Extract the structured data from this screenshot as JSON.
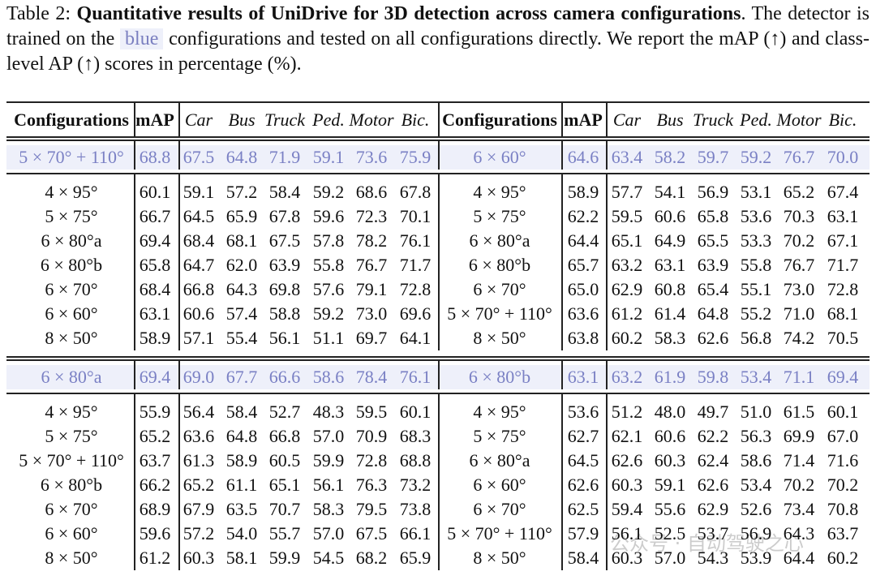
{
  "caption": {
    "label": "Table 2:",
    "bold": "Quantitative results of UniDrive for 3D detection across camera configurations",
    "text1": ". The detector is trained on the",
    "highlight": "blue",
    "text2": "configurations and tested on all configurations directly. We report the mAP (↑) and class-level AP (↑) scores in percentage (%)."
  },
  "table": {
    "header": [
      "Configurations",
      "mAP",
      "Car",
      "Bus",
      "Truck",
      "Ped.",
      "Motor",
      "Bic.",
      "Configurations",
      "mAP",
      "Car",
      "Bus",
      "Truck",
      "Ped.",
      "Motor",
      "Bic."
    ],
    "blocks": [
      {
        "train": [
          "5 × 70° + 110°",
          "68.8",
          "67.5",
          "64.8",
          "71.9",
          "59.1",
          "73.6",
          "75.9",
          "6 × 60°",
          "64.6",
          "63.4",
          "58.2",
          "59.7",
          "59.2",
          "76.7",
          "70.0"
        ],
        "rows": [
          [
            "4 × 95°",
            "60.1",
            "59.1",
            "57.2",
            "58.4",
            "59.2",
            "68.6",
            "67.8",
            "4 × 95°",
            "58.9",
            "57.7",
            "54.1",
            "56.9",
            "53.1",
            "65.2",
            "67.4"
          ],
          [
            "5 × 75°",
            "66.7",
            "64.5",
            "65.9",
            "67.8",
            "59.6",
            "72.3",
            "70.1",
            "5 × 75°",
            "62.2",
            "59.5",
            "60.6",
            "65.8",
            "53.6",
            "70.3",
            "63.1"
          ],
          [
            "6 × 80°a",
            "69.4",
            "68.4",
            "68.1",
            "67.5",
            "57.8",
            "78.2",
            "76.1",
            "6 × 80°a",
            "64.4",
            "65.1",
            "64.9",
            "65.5",
            "53.3",
            "70.2",
            "67.1"
          ],
          [
            "6 × 80°b",
            "65.8",
            "64.7",
            "62.0",
            "63.9",
            "55.8",
            "76.7",
            "71.7",
            "6 × 80°b",
            "65.7",
            "63.2",
            "63.1",
            "63.9",
            "55.8",
            "76.7",
            "71.7"
          ],
          [
            "6 × 70°",
            "68.4",
            "66.8",
            "64.3",
            "69.8",
            "57.6",
            "79.1",
            "72.8",
            "6 × 70°",
            "65.0",
            "62.9",
            "60.8",
            "65.4",
            "55.1",
            "73.0",
            "72.8"
          ],
          [
            "6 × 60°",
            "63.1",
            "60.6",
            "57.4",
            "58.8",
            "59.2",
            "73.0",
            "69.6",
            "5 × 70° + 110°",
            "63.6",
            "61.2",
            "61.4",
            "64.8",
            "55.2",
            "71.0",
            "68.1"
          ],
          [
            "8 × 50°",
            "58.9",
            "57.1",
            "55.4",
            "56.1",
            "51.1",
            "69.7",
            "64.1",
            "8 × 50°",
            "63.8",
            "60.2",
            "58.3",
            "62.6",
            "56.8",
            "74.2",
            "70.5"
          ]
        ]
      },
      {
        "train": [
          "6 × 80°a",
          "69.4",
          "69.0",
          "67.7",
          "66.6",
          "58.6",
          "78.4",
          "76.1",
          "6 × 80°b",
          "63.1",
          "63.2",
          "61.9",
          "59.8",
          "53.4",
          "71.1",
          "69.4"
        ],
        "rows": [
          [
            "4 × 95°",
            "55.9",
            "56.4",
            "58.4",
            "52.7",
            "48.3",
            "59.5",
            "60.1",
            "4 × 95°",
            "53.6",
            "51.2",
            "48.0",
            "49.7",
            "51.0",
            "61.5",
            "60.1"
          ],
          [
            "5 × 75°",
            "65.2",
            "63.6",
            "64.8",
            "66.8",
            "57.0",
            "70.9",
            "68.3",
            "5 × 75°",
            "62.7",
            "62.1",
            "60.6",
            "62.2",
            "56.3",
            "69.9",
            "67.0"
          ],
          [
            "5 × 70° + 110°",
            "63.7",
            "61.3",
            "58.9",
            "60.5",
            "59.9",
            "72.8",
            "68.8",
            "6 × 80°a",
            "64.5",
            "62.6",
            "60.3",
            "62.4",
            "58.6",
            "71.4",
            "71.6"
          ],
          [
            "6 × 80°b",
            "66.2",
            "65.2",
            "61.1",
            "65.1",
            "56.1",
            "76.3",
            "73.2",
            "6 × 60°",
            "62.6",
            "60.3",
            "59.1",
            "62.6",
            "53.4",
            "70.2",
            "70.2"
          ],
          [
            "6 × 70°",
            "68.9",
            "67.9",
            "63.5",
            "70.7",
            "58.3",
            "79.5",
            "73.8",
            "6 × 70°",
            "62.5",
            "59.4",
            "55.6",
            "62.9",
            "52.6",
            "73.4",
            "70.8"
          ],
          [
            "6 × 60°",
            "59.6",
            "57.2",
            "54.0",
            "55.7",
            "57.0",
            "67.5",
            "66.1",
            "5 × 70° + 110°",
            "57.9",
            "56.1",
            "52.5",
            "53.7",
            "56.9",
            "64.3",
            "63.7"
          ],
          [
            "8 × 50°",
            "61.2",
            "60.3",
            "58.1",
            "59.9",
            "54.5",
            "68.2",
            "65.9",
            "8 × 50°",
            "58.4",
            "60.3",
            "57.0",
            "54.3",
            "53.9",
            "64.4",
            "60.2"
          ]
        ]
      }
    ]
  },
  "watermark": "公众号 · 自动驾驶之心"
}
